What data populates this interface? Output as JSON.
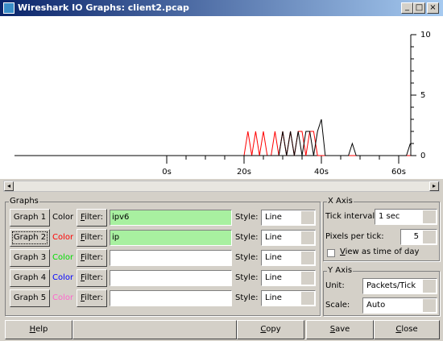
{
  "window": {
    "title": "Wireshark IO Graphs: client2.pcap"
  },
  "chart_data": {
    "type": "line",
    "x": [
      0,
      1,
      2,
      3,
      4,
      5,
      6,
      7,
      8,
      9,
      10,
      11,
      12,
      13,
      14,
      15,
      16,
      17,
      18,
      19,
      20,
      21,
      22,
      23,
      24,
      25,
      26,
      27,
      28,
      29,
      30,
      31,
      32,
      33,
      34,
      35,
      36,
      37,
      38,
      39,
      40,
      41,
      42,
      43,
      44,
      45,
      46,
      47,
      48,
      49,
      50,
      51,
      52,
      53,
      54,
      55,
      56,
      57,
      58,
      59,
      60,
      61,
      62,
      63
    ],
    "series": [
      {
        "color": "#000000",
        "values": [
          0,
          0,
          0,
          0,
          0,
          0,
          0,
          0,
          0,
          0,
          0,
          0,
          0,
          0,
          0,
          0,
          0,
          0,
          0,
          0,
          0,
          0,
          0,
          0,
          0,
          0,
          0,
          0,
          0,
          0,
          2,
          0,
          2,
          0,
          2,
          0,
          2,
          2,
          0,
          2,
          3,
          0,
          0,
          0,
          0,
          0,
          0,
          0,
          1,
          0,
          0,
          0,
          0,
          0,
          0,
          0,
          0,
          0,
          0,
          0,
          0,
          0,
          0,
          1
        ]
      },
      {
        "color": "#ff0000",
        "values": [
          0,
          0,
          0,
          0,
          0,
          0,
          0,
          0,
          0,
          0,
          0,
          0,
          0,
          0,
          0,
          0,
          0,
          0,
          0,
          0,
          0,
          2,
          0,
          2,
          0,
          2,
          0,
          0,
          2,
          0,
          2,
          0,
          2,
          0,
          2,
          2,
          0,
          2,
          2,
          0,
          0,
          0,
          0,
          0,
          0,
          0,
          0,
          0,
          0,
          0,
          0,
          0,
          0,
          0,
          0,
          0,
          0,
          0,
          0,
          0,
          0,
          0,
          0,
          0
        ]
      }
    ],
    "xlim": [
      0,
      63
    ],
    "ylim": [
      0,
      10
    ],
    "xticks": [
      {
        "value": 0,
        "label": "0s"
      },
      {
        "value": 20,
        "label": "20s"
      },
      {
        "value": 40,
        "label": "40s"
      },
      {
        "value": 60,
        "label": "60s"
      }
    ],
    "xticks_minor": [
      5,
      10,
      15,
      25,
      30,
      35,
      45,
      50,
      55
    ],
    "yticks": [
      0,
      5,
      10
    ],
    "yticks_minor": [
      1,
      2,
      3,
      4,
      6,
      7,
      8,
      9
    ]
  },
  "graphs": {
    "title": "Graphs",
    "rows": [
      {
        "name": "Graph 1",
        "color_label": "Color",
        "color": "#000000",
        "filter_label": "Filter:",
        "filter": "ipv6",
        "style_label": "Style:",
        "style": "Line"
      },
      {
        "name": "Graph 2",
        "color_label": "Color",
        "color": "#ff0000",
        "filter_label": "Filter:",
        "filter": "ip",
        "style_label": "Style:",
        "style": "Line"
      },
      {
        "name": "Graph 3",
        "color_label": "Color",
        "color": "#00dd00",
        "filter_label": "Filter:",
        "style_label": "Style:",
        "style": "Line"
      },
      {
        "name": "Graph 4",
        "color_label": "Color",
        "color": "#0000ff",
        "filter_label": "Filter:",
        "style_label": "Style:",
        "style": "Line"
      },
      {
        "name": "Graph 5",
        "color_label": "Color",
        "color": "#ff66cc",
        "filter_label": "Filter:",
        "style_label": "Style:",
        "style": "Line"
      }
    ]
  },
  "x_axis": {
    "title": "X Axis",
    "tick_interval_label": "Tick interval:",
    "tick_interval": "1 sec",
    "pixels_label": "Pixels per tick:",
    "pixels": "5",
    "time_of_day": "View as time of day"
  },
  "y_axis": {
    "title": "Y Axis",
    "unit_label": "Unit:",
    "unit": "Packets/Tick",
    "scale_label": "Scale:",
    "scale": "Auto"
  },
  "buttons": {
    "help": "Help",
    "copy": "Copy",
    "save": "Save",
    "close": "Close"
  }
}
